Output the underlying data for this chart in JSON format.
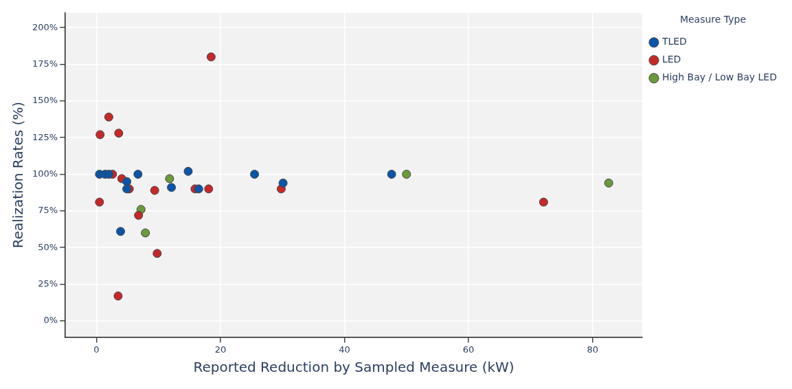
{
  "chart_data": {
    "type": "scatter",
    "xlabel": "Reported Reduction by Sampled Measure (kW)",
    "ylabel": "Realization Rates (%)",
    "legend_title": "Measure Type",
    "legend": "top right",
    "grid": true,
    "marker": "circle",
    "xlim": [
      -5,
      88
    ],
    "xticks": [
      0,
      20,
      40,
      60,
      80
    ],
    "ylim": [
      -11,
      210
    ],
    "yticks": [
      {
        "value": 0,
        "label": "0%"
      },
      {
        "value": 25,
        "label": "25%"
      },
      {
        "value": 50,
        "label": "50%"
      },
      {
        "value": 75,
        "label": "75%"
      },
      {
        "value": 100,
        "label": "100%"
      },
      {
        "value": 125,
        "label": "125%"
      },
      {
        "value": 150,
        "label": "150%"
      },
      {
        "value": 175,
        "label": "175%"
      },
      {
        "value": 200,
        "label": "200%"
      }
    ],
    "series": [
      {
        "name": "TLED",
        "color": "#0b55a8",
        "x": [
          0.5,
          1.4,
          2.0,
          4.9,
          4.9,
          6.7,
          3.9,
          12.1,
          14.8,
          16.5,
          25.5,
          30.1,
          47.6
        ],
        "values": [
          100,
          100,
          100,
          95,
          90,
          100,
          61,
          91,
          102,
          90,
          100,
          94,
          100
        ]
      },
      {
        "name": "LED",
        "color": "#c62828",
        "x": [
          2.0,
          0.6,
          3.6,
          2.6,
          4.1,
          5.3,
          0.5,
          9.4,
          6.8,
          9.8,
          3.5,
          15.9,
          18.1,
          29.8,
          18.5,
          72.1
        ],
        "values": [
          139,
          127,
          128,
          100,
          97,
          90,
          81,
          89,
          72,
          46,
          17,
          90,
          90,
          90,
          180,
          81
        ]
      },
      {
        "name": "High Bay / Low Bay LED",
        "color": "#6a9a3b",
        "x": [
          11.8,
          7.2,
          7.9,
          50.0,
          82.6
        ],
        "values": [
          97,
          76,
          60,
          100,
          94
        ]
      }
    ]
  }
}
